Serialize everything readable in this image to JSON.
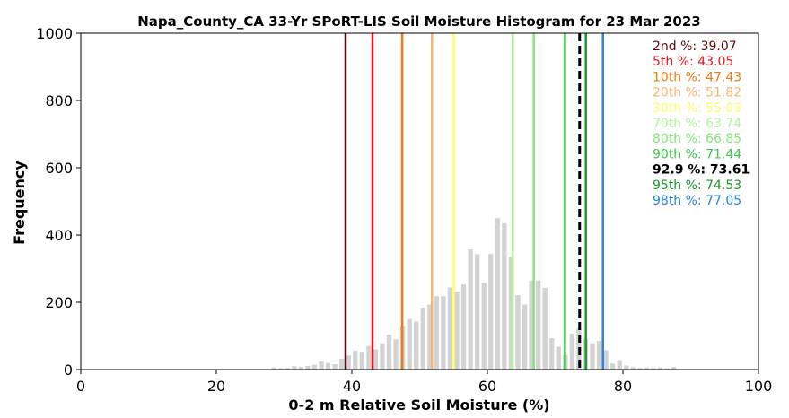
{
  "chart_data": {
    "type": "bar",
    "title": "Napa_County_CA 33-Yr SPoRT-LIS Soil Moisture Histogram for 23 Mar 2023",
    "xlabel": "0-2 m Relative Soil Moisture (%)",
    "ylabel": "Frequency",
    "xlim": [
      0,
      100
    ],
    "ylim": [
      0,
      1000
    ],
    "xticks": [
      "0",
      "20",
      "40",
      "60",
      "80",
      "100"
    ],
    "yticks": [
      "0",
      "200",
      "400",
      "600",
      "800",
      "1000"
    ],
    "grid": false,
    "legend_position": "top-right",
    "bar_color": "#d3d3d3",
    "bin_width": 1,
    "bins": [
      {
        "x": 28.5,
        "y": 6
      },
      {
        "x": 29.5,
        "y": 4
      },
      {
        "x": 30.5,
        "y": 5
      },
      {
        "x": 31.5,
        "y": 10
      },
      {
        "x": 32.5,
        "y": 8
      },
      {
        "x": 33.5,
        "y": 11
      },
      {
        "x": 34.5,
        "y": 14
      },
      {
        "x": 35.5,
        "y": 24
      },
      {
        "x": 36.5,
        "y": 20
      },
      {
        "x": 37.5,
        "y": 16
      },
      {
        "x": 38.5,
        "y": 32
      },
      {
        "x": 39.5,
        "y": 42
      },
      {
        "x": 40.5,
        "y": 56
      },
      {
        "x": 41.5,
        "y": 53
      },
      {
        "x": 42.5,
        "y": 70
      },
      {
        "x": 43.5,
        "y": 60
      },
      {
        "x": 44.5,
        "y": 78
      },
      {
        "x": 45.5,
        "y": 104
      },
      {
        "x": 46.5,
        "y": 90
      },
      {
        "x": 47.5,
        "y": 130
      },
      {
        "x": 48.5,
        "y": 150
      },
      {
        "x": 49.5,
        "y": 143
      },
      {
        "x": 50.5,
        "y": 184
      },
      {
        "x": 51.5,
        "y": 193
      },
      {
        "x": 52.5,
        "y": 218
      },
      {
        "x": 53.5,
        "y": 218
      },
      {
        "x": 54.5,
        "y": 244
      },
      {
        "x": 55.5,
        "y": 232
      },
      {
        "x": 56.5,
        "y": 253
      },
      {
        "x": 57.5,
        "y": 357
      },
      {
        "x": 58.5,
        "y": 343
      },
      {
        "x": 59.5,
        "y": 258
      },
      {
        "x": 60.5,
        "y": 344
      },
      {
        "x": 61.5,
        "y": 450
      },
      {
        "x": 62.5,
        "y": 435
      },
      {
        "x": 63.5,
        "y": 335
      },
      {
        "x": 64.5,
        "y": 221
      },
      {
        "x": 65.5,
        "y": 193
      },
      {
        "x": 66.5,
        "y": 265
      },
      {
        "x": 67.5,
        "y": 265
      },
      {
        "x": 68.5,
        "y": 243
      },
      {
        "x": 69.5,
        "y": 93
      },
      {
        "x": 70.5,
        "y": 68
      },
      {
        "x": 71.5,
        "y": 43
      },
      {
        "x": 72.5,
        "y": 107
      },
      {
        "x": 73.5,
        "y": 123
      },
      {
        "x": 74.5,
        "y": 92
      },
      {
        "x": 75.5,
        "y": 78
      },
      {
        "x": 76.5,
        "y": 85
      },
      {
        "x": 77.5,
        "y": 58
      },
      {
        "x": 78.5,
        "y": 18
      },
      {
        "x": 79.5,
        "y": 28
      },
      {
        "x": 80.5,
        "y": 12
      },
      {
        "x": 81.5,
        "y": 7
      },
      {
        "x": 82.5,
        "y": 5
      },
      {
        "x": 83.5,
        "y": 6
      },
      {
        "x": 84.5,
        "y": 5
      },
      {
        "x": 85.5,
        "y": 6
      },
      {
        "x": 86.5,
        "y": 4
      },
      {
        "x": 87.5,
        "y": 8
      }
    ],
    "percentile_lines": [
      {
        "label": "2nd %",
        "value": 39.07,
        "value_text": "39.07",
        "color": "#5a0a0a",
        "dashed": false
      },
      {
        "label": "5th %",
        "value": 43.05,
        "value_text": "43.05",
        "color": "#e31a1c",
        "dashed": false
      },
      {
        "label": "10th %",
        "value": 47.43,
        "value_text": "47.43",
        "color": "#f07b12",
        "dashed": false
      },
      {
        "label": "20th %",
        "value": 51.82,
        "value_text": "51.82",
        "color": "#fdb36e",
        "dashed": false
      },
      {
        "label": "30th %",
        "value": 55.03,
        "value_text": "55.03",
        "color": "#ffff66",
        "dashed": false
      },
      {
        "label": "70th %",
        "value": 63.74,
        "value_text": "63.74",
        "color": "#b2f2a0",
        "dashed": false
      },
      {
        "label": "80th %",
        "value": 66.85,
        "value_text": "66.85",
        "color": "#86e57a",
        "dashed": false
      },
      {
        "label": "90th %",
        "value": 71.44,
        "value_text": "71.44",
        "color": "#3cc94a",
        "dashed": false
      },
      {
        "label": "92.9 %",
        "value": 73.61,
        "value_text": "73.61",
        "color": "#000000",
        "dashed": true
      },
      {
        "label": "95th %",
        "value": 74.53,
        "value_text": "74.53",
        "color": "#1a9a2a",
        "dashed": false
      },
      {
        "label": "98th %",
        "value": 77.05,
        "value_text": "77.05",
        "color": "#2b83e0",
        "dashed": false
      }
    ]
  }
}
